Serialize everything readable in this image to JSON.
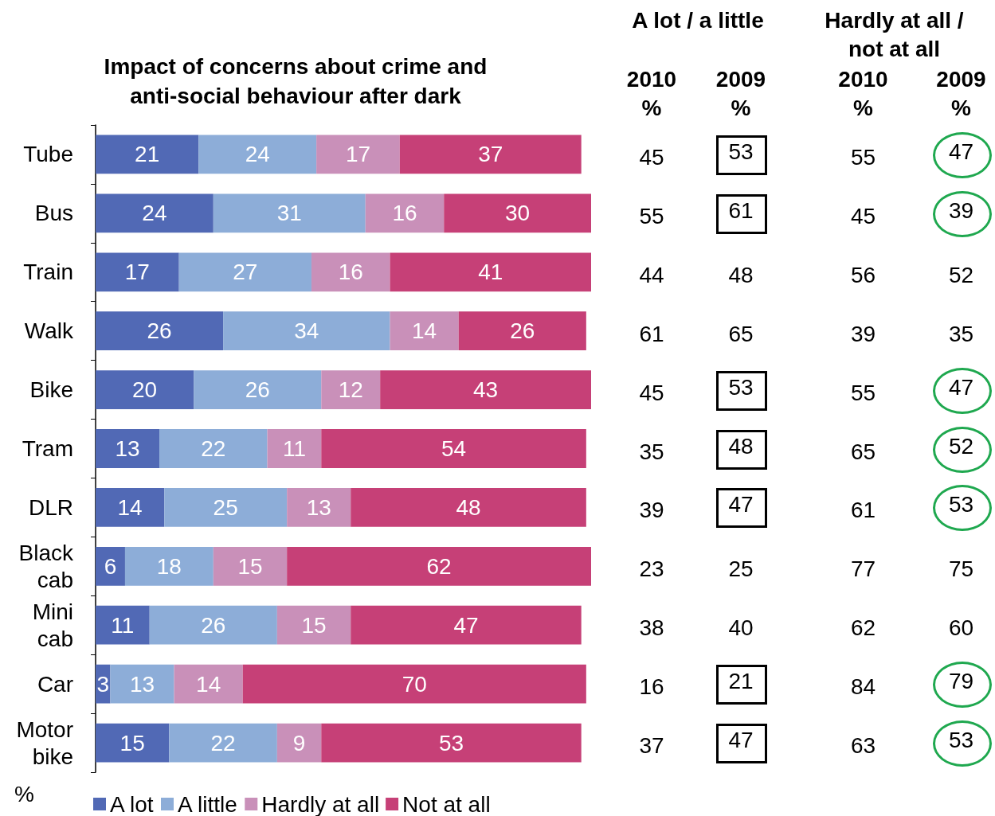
{
  "chart_data": [
    {
      "type": "bar",
      "orientation": "horizontal",
      "stacked": true,
      "data_labels": true,
      "legend": "bottom",
      "xlabel": "%",
      "title": "Impact of concerns about crime and\nanti-social behaviour after dark",
      "categories": [
        "Tube",
        "Bus",
        "Train",
        "Walk",
        "Bike",
        "Tram",
        "DLR",
        "Black\ncab",
        "Mini\ncab",
        "Car",
        "Motor\nbike"
      ],
      "series": [
        {
          "name": "A lot",
          "color": "#5169b5",
          "values": [
            21,
            24,
            17,
            26,
            20,
            13,
            14,
            6,
            11,
            3,
            15
          ]
        },
        {
          "name": "A little",
          "color": "#8dadd8",
          "values": [
            24,
            31,
            27,
            34,
            26,
            22,
            25,
            18,
            26,
            13,
            22
          ]
        },
        {
          "name": "Hardly at all",
          "color": "#c990b9",
          "values": [
            17,
            16,
            16,
            14,
            12,
            11,
            13,
            15,
            15,
            14,
            9
          ]
        },
        {
          "name": "Not at all",
          "color": "#c64077",
          "values": [
            37,
            30,
            41,
            26,
            43,
            54,
            48,
            62,
            47,
            70,
            53
          ]
        }
      ]
    },
    {
      "type": "other",
      "title": "A lot / a little",
      "categories": [
        "2010\n%",
        "2009\n%"
      ],
      "annotations": [
        "45",
        "53",
        "55",
        "61",
        "44",
        "48",
        "61",
        "65",
        "45",
        "53",
        "35",
        "48",
        "39",
        "47",
        "23",
        "25",
        "38",
        "40",
        "16",
        "21",
        "37",
        "47"
      ],
      "colors": [
        null,
        "#000000",
        null,
        "#000000",
        null,
        null,
        null,
        null,
        null,
        "#000000",
        null,
        "#000000",
        null,
        "#000000",
        null,
        null,
        null,
        null,
        null,
        "#000000",
        null,
        "#000000"
      ]
    },
    {
      "type": "other",
      "title": "Hardly at all /\nnot at all",
      "categories": [
        "2010\n%",
        "2009\n%"
      ],
      "annotations": [
        "55",
        "47",
        "45",
        "39",
        "56",
        "52",
        "39",
        "35",
        "55",
        "47",
        "65",
        "52",
        "61",
        "53",
        "77",
        "75",
        "62",
        "60",
        "84",
        "79",
        "63",
        "53"
      ],
      "colors": [
        null,
        "#1fa84f",
        null,
        "#1fa84f",
        null,
        null,
        null,
        null,
        null,
        "#1fa84f",
        null,
        "#1fa84f",
        null,
        "#1fa84f",
        null,
        null,
        null,
        null,
        null,
        "#1fa84f",
        null,
        "#1fa84f"
      ]
    }
  ]
}
